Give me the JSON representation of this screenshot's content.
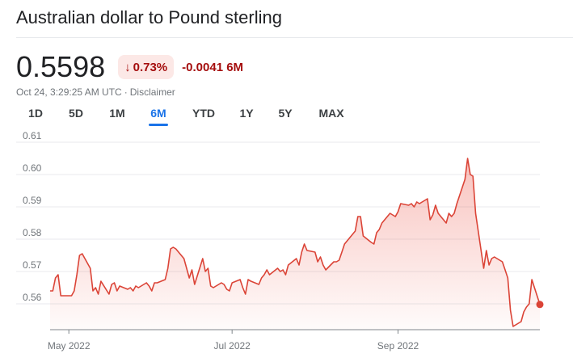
{
  "header": {
    "title": "Australian dollar to Pound sterling"
  },
  "quote": {
    "price": "0.5598",
    "change_percent": "0.73%",
    "change_direction": "down",
    "change_abs": "-0.0041",
    "change_period": "6M",
    "timestamp": "Oct 24, 3:29:25 AM UTC",
    "separator": "·",
    "disclaimer": "Disclaimer"
  },
  "tabs": [
    {
      "label": "1D",
      "active": false
    },
    {
      "label": "5D",
      "active": false
    },
    {
      "label": "1M",
      "active": false
    },
    {
      "label": "6M",
      "active": true
    },
    {
      "label": "YTD",
      "active": false
    },
    {
      "label": "1Y",
      "active": false
    },
    {
      "label": "5Y",
      "active": false
    },
    {
      "label": "MAX",
      "active": false
    }
  ],
  "colors": {
    "line": "#db4437",
    "fill": "#ea4335",
    "grid": "#e8eaed",
    "axis": "#80868b",
    "tick_text": "#70757a",
    "down": "#a50e0e",
    "active_tab": "#1a73e8"
  },
  "chart_data": {
    "type": "area",
    "ylim": [
      0.552,
      0.612
    ],
    "yticks": [
      "0.61",
      "0.60",
      "0.59",
      "0.58",
      "0.57",
      "0.56"
    ],
    "xlim": [
      "2022-04-24",
      "2022-10-24"
    ],
    "xticks": [
      {
        "date": "2022-05-01",
        "label": "May 2022"
      },
      {
        "date": "2022-07-01",
        "label": "Jul 2022"
      },
      {
        "date": "2022-09-01",
        "label": "Sep 2022"
      }
    ],
    "grid": true,
    "series": [
      {
        "x": [
          "2022-04-24",
          "2022-04-25",
          "2022-04-26",
          "2022-04-27",
          "2022-04-28",
          "2022-04-29",
          "2022-05-02",
          "2022-05-03",
          "2022-05-04",
          "2022-05-05",
          "2022-05-06",
          "2022-05-09",
          "2022-05-10",
          "2022-05-11",
          "2022-05-12",
          "2022-05-13",
          "2022-05-16",
          "2022-05-17",
          "2022-05-18",
          "2022-05-19",
          "2022-05-20",
          "2022-05-23",
          "2022-05-24",
          "2022-05-25",
          "2022-05-26",
          "2022-05-27",
          "2022-05-30",
          "2022-05-31",
          "2022-06-01",
          "2022-06-02",
          "2022-06-03",
          "2022-06-06",
          "2022-06-07",
          "2022-06-08",
          "2022-06-09",
          "2022-06-10",
          "2022-06-13",
          "2022-06-14",
          "2022-06-15",
          "2022-06-16",
          "2022-06-17",
          "2022-06-20",
          "2022-06-21",
          "2022-06-22",
          "2022-06-23",
          "2022-06-24",
          "2022-06-27",
          "2022-06-28",
          "2022-06-29",
          "2022-06-30",
          "2022-07-01",
          "2022-07-04",
          "2022-07-05",
          "2022-07-06",
          "2022-07-07",
          "2022-07-08",
          "2022-07-11",
          "2022-07-12",
          "2022-07-13",
          "2022-07-14",
          "2022-07-15",
          "2022-07-18",
          "2022-07-19",
          "2022-07-20",
          "2022-07-21",
          "2022-07-22",
          "2022-07-25",
          "2022-07-26",
          "2022-07-27",
          "2022-07-28",
          "2022-07-29",
          "2022-08-01",
          "2022-08-02",
          "2022-08-03",
          "2022-08-04",
          "2022-08-05",
          "2022-08-08",
          "2022-08-09",
          "2022-08-10",
          "2022-08-11",
          "2022-08-12",
          "2022-08-15",
          "2022-08-16",
          "2022-08-17",
          "2022-08-18",
          "2022-08-19",
          "2022-08-22",
          "2022-08-23",
          "2022-08-24",
          "2022-08-25",
          "2022-08-26",
          "2022-08-29",
          "2022-08-30",
          "2022-08-31",
          "2022-09-01",
          "2022-09-02",
          "2022-09-05",
          "2022-09-06",
          "2022-09-07",
          "2022-09-08",
          "2022-09-09",
          "2022-09-12",
          "2022-09-13",
          "2022-09-14",
          "2022-09-15",
          "2022-09-16",
          "2022-09-19",
          "2022-09-20",
          "2022-09-21",
          "2022-09-22",
          "2022-09-23",
          "2022-09-26",
          "2022-09-27",
          "2022-09-28",
          "2022-09-29",
          "2022-09-30",
          "2022-10-03",
          "2022-10-04",
          "2022-10-05",
          "2022-10-06",
          "2022-10-07",
          "2022-10-10",
          "2022-10-11",
          "2022-10-12",
          "2022-10-13",
          "2022-10-14",
          "2022-10-17",
          "2022-10-18",
          "2022-10-19",
          "2022-10-20",
          "2022-10-21",
          "2022-10-24"
        ],
        "values": [
          0.564,
          0.564,
          0.568,
          0.569,
          0.5625,
          0.5625,
          0.5625,
          0.564,
          0.569,
          0.575,
          0.5755,
          0.571,
          0.564,
          0.565,
          0.563,
          0.567,
          0.563,
          0.566,
          0.5665,
          0.564,
          0.5655,
          0.5645,
          0.565,
          0.564,
          0.5655,
          0.565,
          0.5665,
          0.5655,
          0.564,
          0.5665,
          0.5665,
          0.5675,
          0.571,
          0.577,
          0.5775,
          0.577,
          0.574,
          0.571,
          0.568,
          0.5705,
          0.566,
          0.574,
          0.57,
          0.571,
          0.5655,
          0.565,
          0.5665,
          0.566,
          0.5645,
          0.564,
          0.5665,
          0.5675,
          0.565,
          0.563,
          0.5675,
          0.567,
          0.566,
          0.568,
          0.569,
          0.5705,
          0.569,
          0.571,
          0.57,
          0.5705,
          0.569,
          0.572,
          0.574,
          0.572,
          0.576,
          0.5785,
          0.5765,
          0.576,
          0.573,
          0.5745,
          0.572,
          0.5705,
          0.573,
          0.573,
          0.5735,
          0.576,
          0.5785,
          0.5815,
          0.5825,
          0.587,
          0.587,
          0.581,
          0.579,
          0.5785,
          0.582,
          0.583,
          0.585,
          0.588,
          0.5875,
          0.587,
          0.5885,
          0.591,
          0.5905,
          0.591,
          0.59,
          0.5915,
          0.591,
          0.5925,
          0.586,
          0.5875,
          0.5905,
          0.588,
          0.585,
          0.588,
          0.587,
          0.588,
          0.591,
          0.5985,
          0.605,
          0.6,
          0.5995,
          0.588,
          0.571,
          0.5765,
          0.572,
          0.574,
          0.5745,
          0.573,
          0.5705,
          0.568,
          0.558,
          0.553,
          0.5545,
          0.5575,
          0.559,
          0.56,
          0.5675,
          0.5598
        ]
      }
    ]
  }
}
